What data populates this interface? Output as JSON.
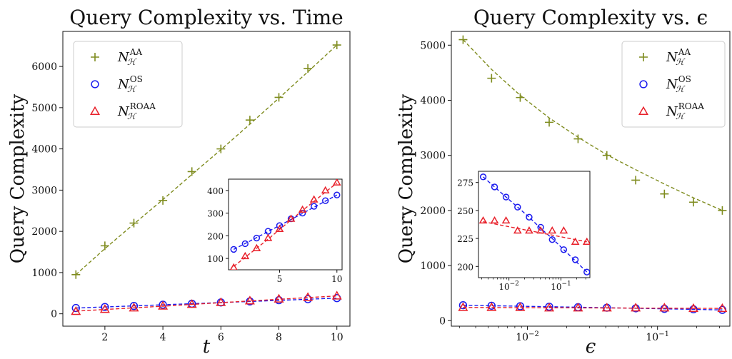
{
  "chart_data": [
    {
      "type": "line",
      "title": "Query Complexity vs. Time",
      "xlabel": "t",
      "ylabel": "Query Complexity",
      "xlim": [
        0.55,
        10.45
      ],
      "ylim": [
        -300,
        6850
      ],
      "xscale": "linear",
      "xticks": [
        2,
        4,
        6,
        8,
        10
      ],
      "yticks": [
        0,
        1000,
        2000,
        3000,
        4000,
        5000,
        6000
      ],
      "legend_position": "top-left",
      "grid": false,
      "x": [
        1,
        2,
        3,
        4,
        5,
        6,
        7,
        8,
        9,
        10
      ],
      "series": [
        {
          "name": "AA",
          "label_main": "N",
          "label_sub": "ℋ",
          "label_sup": "AA",
          "marker": "plus",
          "color": "#7f8c1f",
          "values": [
            950,
            1650,
            2200,
            2750,
            3450,
            4000,
            4700,
            5250,
            5950,
            6520
          ],
          "fit": [
            950,
            1580,
            2180,
            2770,
            3380,
            3980,
            4600,
            5230,
            5870,
            6520
          ]
        },
        {
          "name": "OS",
          "label_main": "N",
          "label_sub": "ℋ",
          "label_sup": "OS",
          "marker": "circle",
          "color": "#1a1aee",
          "values": [
            140,
            165,
            190,
            220,
            245,
            275,
            300,
            330,
            355,
            380
          ],
          "fit": [
            140,
            166,
            192,
            219,
            245,
            272,
            299,
            326,
            353,
            380
          ]
        },
        {
          "name": "ROAA",
          "label_main": "N",
          "label_sub": "ℋ",
          "label_sup": "ROAA",
          "marker": "triangle",
          "color": "#e8202a",
          "values": [
            60,
            110,
            145,
            190,
            230,
            275,
            315,
            360,
            400,
            435
          ],
          "fit": [
            65,
            105,
            145,
            185,
            228,
            270,
            312,
            352,
            393,
            433
          ]
        }
      ],
      "inset": {
        "xlim": [
          0.55,
          10.45
        ],
        "ylim": [
          50,
          450
        ],
        "xticks": [
          5,
          10
        ],
        "yticks": [
          100,
          200,
          300,
          400
        ],
        "series_shown": [
          "OS",
          "ROAA"
        ]
      }
    },
    {
      "type": "line",
      "title": "Query Complexity vs. ϵ",
      "xlabel": "ϵ",
      "ylabel": "Query Complexity",
      "xlim": [
        0.0026,
        0.36
      ],
      "ylim": [
        -100,
        5250
      ],
      "xscale": "log",
      "xticks": [
        0.01,
        0.1
      ],
      "xtick_labels": [
        "10",
        "10"
      ],
      "xtick_sups": [
        "−2",
        "−1"
      ],
      "yticks": [
        0,
        1000,
        2000,
        3000,
        4000,
        5000
      ],
      "legend_position": "top-right",
      "grid": false,
      "x": [
        0.0032,
        0.0053,
        0.0088,
        0.0147,
        0.0245,
        0.0408,
        0.068,
        0.113,
        0.189,
        0.315
      ],
      "series": [
        {
          "name": "AA",
          "label_main": "N",
          "label_sub": "ℋ",
          "label_sup": "AA",
          "marker": "plus",
          "color": "#7f8c1f",
          "values": [
            5100,
            4400,
            4050,
            3600,
            3300,
            3000,
            2550,
            2300,
            2150,
            2000
          ],
          "fit": [
            5100,
            4560,
            4090,
            3680,
            3330,
            3010,
            2740,
            2480,
            2230,
            2000
          ]
        },
        {
          "name": "OS",
          "label_main": "N",
          "label_sub": "ℋ",
          "label_sup": "OS",
          "marker": "circle",
          "color": "#1a1aee",
          "values": [
            280,
            271,
            262,
            253,
            244,
            235,
            224,
            215,
            206,
            195
          ],
          "fit": [
            280,
            271,
            262,
            253,
            244,
            234,
            225,
            215,
            205,
            195
          ]
        },
        {
          "name": "ROAA",
          "label_main": "N",
          "label_sub": "ℋ",
          "label_sup": "ROAA",
          "marker": "triangle",
          "color": "#e8202a",
          "values": [
            241,
            241,
            241,
            232,
            232,
            232,
            232,
            232,
            222,
            222
          ],
          "fit": [
            240,
            238,
            236,
            234,
            232,
            230,
            228,
            226,
            224,
            222
          ]
        }
      ],
      "inset": {
        "xlim": [
          0.0026,
          0.36
        ],
        "ylim": [
          190,
          285
        ],
        "xticks": [
          0.01,
          0.1
        ],
        "xtick_labels": [
          "10",
          "10"
        ],
        "xtick_sups": [
          "−2",
          "−1"
        ],
        "yticks": [
          200,
          225,
          250,
          275
        ],
        "series_shown": [
          "OS",
          "ROAA"
        ]
      }
    }
  ]
}
